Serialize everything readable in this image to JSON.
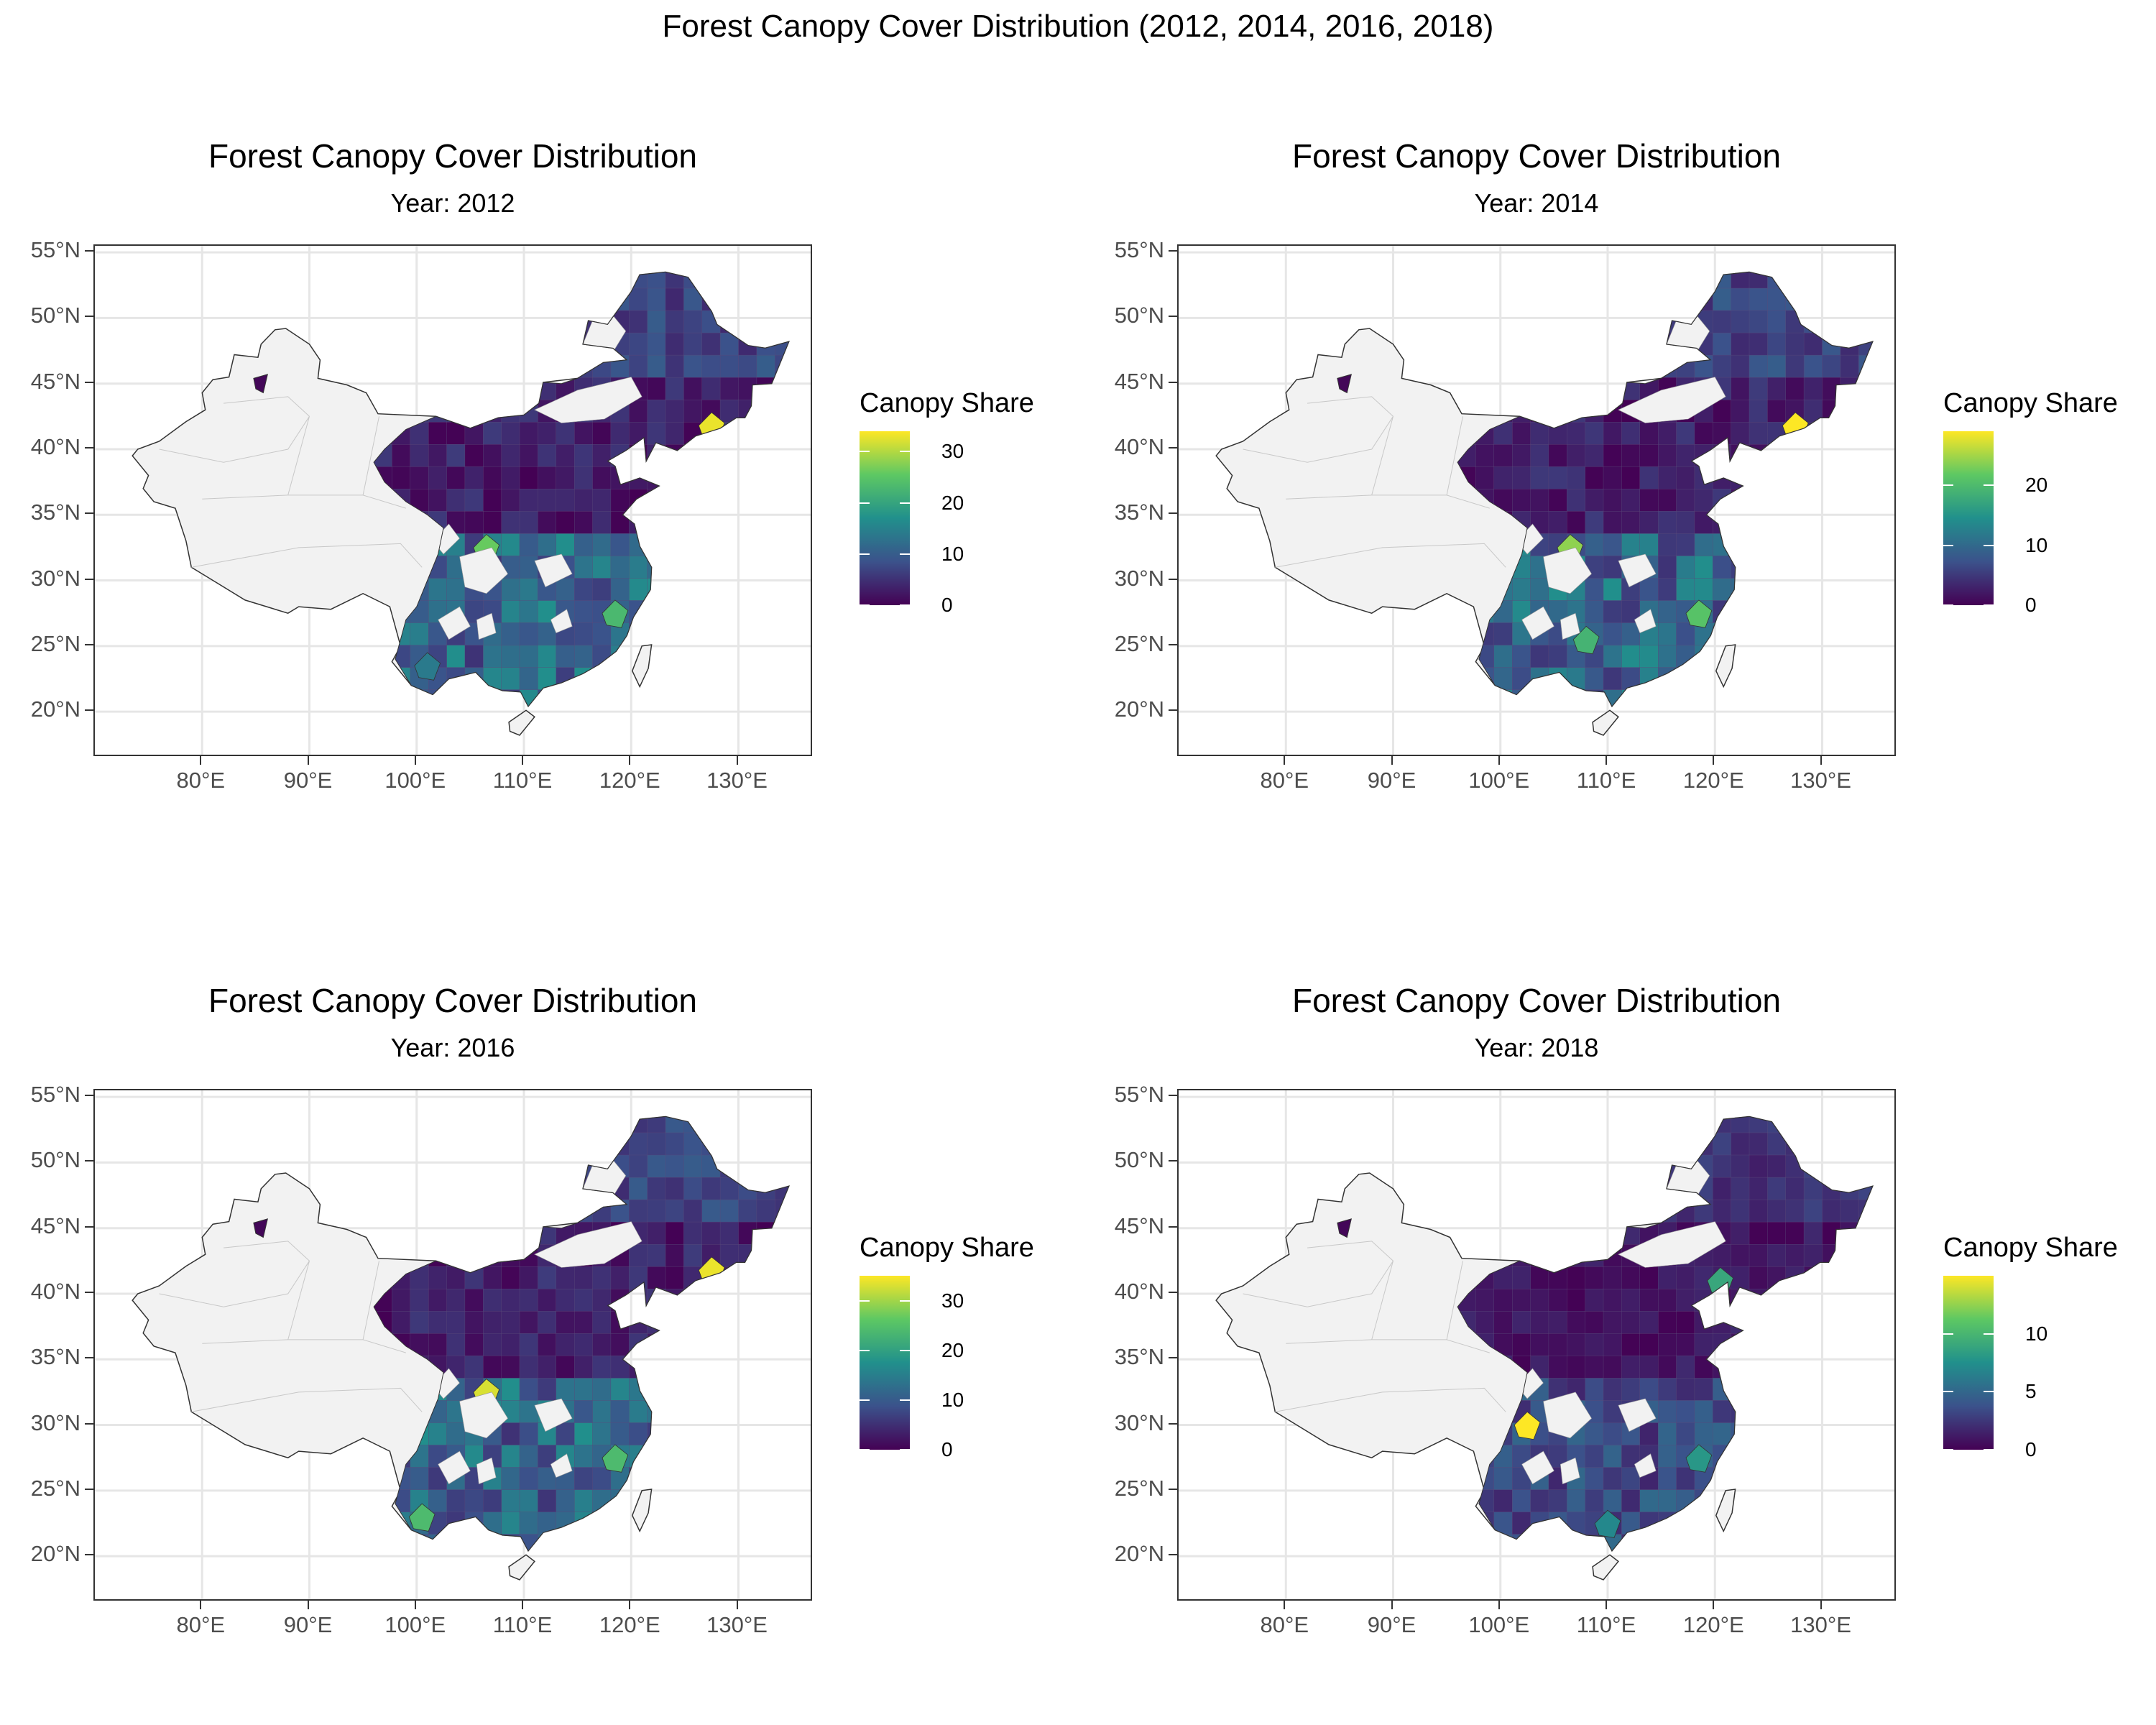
{
  "title": "Forest Canopy Cover Distribution (2012, 2014, 2016, 2018)",
  "axes": {
    "lat_labels": [
      "55°N",
      "50°N",
      "45°N",
      "40°N",
      "35°N",
      "30°N",
      "25°N",
      "20°N"
    ],
    "lon_labels": [
      "80°E",
      "90°E",
      "100°E",
      "110°E",
      "120°E",
      "130°E"
    ]
  },
  "colors": {
    "scale": [
      "#440154",
      "#3b528b",
      "#21908c",
      "#5dc863",
      "#fde725"
    ],
    "no_data": "#f2f2f2",
    "border": "#333333"
  },
  "chart_data": [
    {
      "type": "choropleth-map",
      "title": "Forest Canopy Cover Distribution",
      "subtitle": "Year: 2012",
      "legend_title": "Canopy Share",
      "legend_max": 34,
      "legend_ticks": [
        0,
        10,
        20,
        30
      ],
      "lon_range": [
        70,
        137
      ],
      "lat_range": [
        16.5,
        55.5
      ],
      "hotspots": [
        {
          "lon": 127.5,
          "lat": 41.8,
          "value": 33
        },
        {
          "lon": 106.5,
          "lat": 32.5,
          "value": 26
        },
        {
          "lon": 118.5,
          "lat": 27.5,
          "value": 23
        },
        {
          "lon": 101.0,
          "lat": 23.5,
          "value": 14
        }
      ]
    },
    {
      "type": "choropleth-map",
      "title": "Forest Canopy Cover Distribution",
      "subtitle": "Year: 2014",
      "legend_title": "Canopy Share",
      "legend_max": 29,
      "legend_ticks": [
        0,
        10,
        20
      ],
      "lon_range": [
        70,
        137
      ],
      "lat_range": [
        16.5,
        55.5
      ],
      "hotspots": [
        {
          "lon": 127.5,
          "lat": 41.8,
          "value": 29
        },
        {
          "lon": 106.5,
          "lat": 32.5,
          "value": 24
        },
        {
          "lon": 118.5,
          "lat": 27.5,
          "value": 21
        },
        {
          "lon": 108.0,
          "lat": 25.5,
          "value": 19
        }
      ]
    },
    {
      "type": "choropleth-map",
      "title": "Forest Canopy Cover Distribution",
      "subtitle": "Year: 2016",
      "legend_title": "Canopy Share",
      "legend_max": 35,
      "legend_ticks": [
        0,
        10,
        20,
        30
      ],
      "lon_range": [
        70,
        137
      ],
      "lat_range": [
        16.5,
        55.5
      ],
      "hotspots": [
        {
          "lon": 127.5,
          "lat": 41.8,
          "value": 34
        },
        {
          "lon": 106.5,
          "lat": 32.5,
          "value": 33
        },
        {
          "lon": 100.5,
          "lat": 23.0,
          "value": 24
        },
        {
          "lon": 118.5,
          "lat": 27.5,
          "value": 24
        }
      ]
    },
    {
      "type": "choropleth-map",
      "title": "Forest Canopy Cover Distribution",
      "subtitle": "Year: 2018",
      "legend_title": "Canopy Share",
      "legend_max": 15,
      "legend_ticks": [
        0,
        5,
        10
      ],
      "lon_range": [
        70,
        137
      ],
      "lat_range": [
        16.5,
        55.5
      ],
      "hotspots": [
        {
          "lon": 102.5,
          "lat": 30.0,
          "value": 15
        },
        {
          "lon": 120.5,
          "lat": 41.0,
          "value": 9
        },
        {
          "lon": 118.5,
          "lat": 27.5,
          "value": 8
        },
        {
          "lon": 110.0,
          "lat": 22.5,
          "value": 7
        }
      ]
    }
  ]
}
